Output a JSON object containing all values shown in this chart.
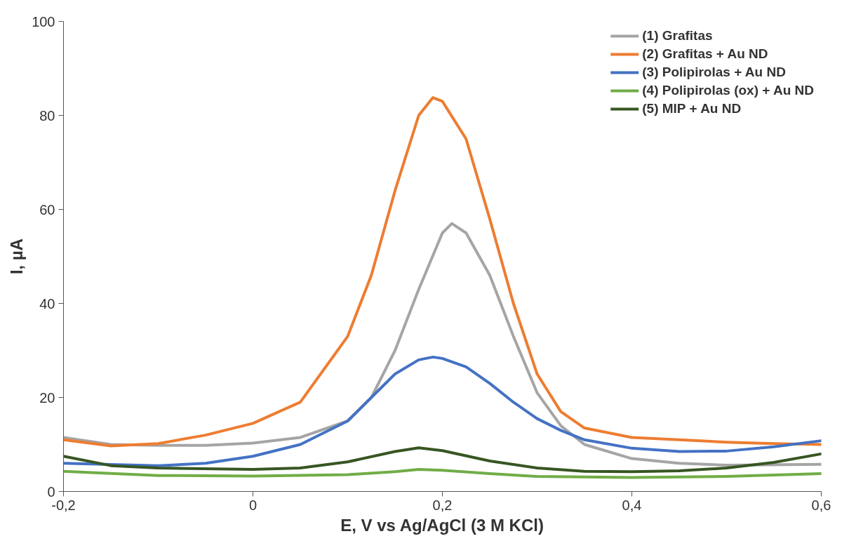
{
  "chart_data": {
    "type": "line",
    "xlabel": "E, V vs Ag/AgCl (3 M KCl)",
    "ylabel": "I, µA",
    "xlim": [
      -0.2,
      0.6
    ],
    "ylim": [
      0,
      100
    ],
    "xticks": [
      {
        "value": -0.2,
        "label": "-0,2"
      },
      0,
      {
        "value": 0.2,
        "label": "0,2"
      },
      {
        "value": 0.4,
        "label": "0,4"
      },
      {
        "value": 0.6,
        "label": "0,6"
      }
    ],
    "yticks": [
      0,
      20,
      40,
      60,
      80,
      100
    ],
    "grid": false,
    "legend": "top right",
    "line_style": "solid",
    "marker": "none",
    "series": [
      {
        "name": "(1) Grafitas",
        "color": "#a5a5a5",
        "x": [
          -0.2,
          -0.15,
          -0.1,
          -0.05,
          0,
          0.05,
          0.1,
          0.125,
          0.15,
          0.175,
          0.2,
          0.21,
          0.225,
          0.25,
          0.275,
          0.3,
          0.325,
          0.35,
          0.4,
          0.45,
          0.5,
          0.6
        ],
        "values": [
          11.5,
          10,
          9.8,
          9.8,
          10.3,
          11.5,
          15,
          20,
          30,
          43,
          55,
          57,
          55,
          46,
          33,
          21,
          14,
          10,
          7,
          6,
          5.6,
          5.8
        ]
      },
      {
        "name": "(2) Grafitas + Au ND",
        "color": "#ed7d31",
        "x": [
          -0.2,
          -0.15,
          -0.1,
          -0.05,
          0,
          0.05,
          0.1,
          0.125,
          0.15,
          0.175,
          0.19,
          0.2,
          0.225,
          0.25,
          0.275,
          0.3,
          0.325,
          0.35,
          0.4,
          0.45,
          0.5,
          0.55,
          0.6
        ],
        "values": [
          11,
          9.7,
          10.2,
          12,
          14.5,
          19,
          33,
          46,
          64,
          80,
          83.8,
          83,
          75,
          58,
          40,
          25,
          17,
          13.5,
          11.5,
          11,
          10.5,
          10.2,
          10
        ]
      },
      {
        "name": "(3) Polipirolas + Au ND",
        "color": "#4472c4",
        "x": [
          -0.2,
          -0.1,
          -0.05,
          0,
          0.05,
          0.1,
          0.125,
          0.15,
          0.175,
          0.19,
          0.2,
          0.225,
          0.25,
          0.275,
          0.3,
          0.325,
          0.35,
          0.4,
          0.45,
          0.5,
          0.55,
          0.6
        ],
        "values": [
          6,
          5.5,
          6,
          7.5,
          10,
          15,
          20,
          25,
          28,
          28.6,
          28.3,
          26.5,
          23,
          19,
          15.5,
          13,
          11,
          9.2,
          8.5,
          8.6,
          9.5,
          10.8
        ]
      },
      {
        "name": "(4) Polipirolas (ox) + Au ND",
        "color": "#70ad47",
        "x": [
          -0.2,
          -0.1,
          0,
          0.1,
          0.15,
          0.175,
          0.2,
          0.25,
          0.3,
          0.4,
          0.5,
          0.6
        ],
        "values": [
          4.3,
          3.4,
          3.3,
          3.6,
          4.2,
          4.7,
          4.5,
          3.8,
          3.2,
          3,
          3.2,
          3.8
        ]
      },
      {
        "name": "(5) MIP + Au ND",
        "color": "#375623",
        "x": [
          -0.2,
          -0.15,
          -0.1,
          0,
          0.05,
          0.1,
          0.15,
          0.175,
          0.2,
          0.25,
          0.3,
          0.35,
          0.4,
          0.45,
          0.5,
          0.55,
          0.6
        ],
        "values": [
          7.5,
          5.5,
          5,
          4.7,
          5,
          6.3,
          8.5,
          9.3,
          8.7,
          6.5,
          5,
          4.3,
          4.2,
          4.4,
          5,
          6.2,
          8
        ]
      }
    ]
  }
}
